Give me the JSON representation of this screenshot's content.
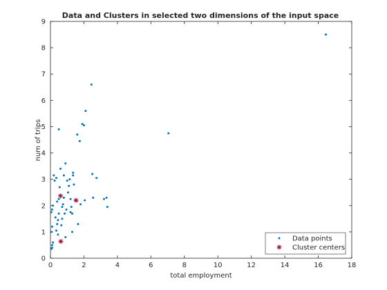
{
  "chart_data": {
    "type": "scatter",
    "title": "Data and Clusters in selected two dimensions of the input space",
    "xlabel": "total employment",
    "ylabel": "num of trips",
    "xlim": [
      0,
      18
    ],
    "ylim": [
      0,
      9
    ],
    "xticks": [
      "0",
      "2",
      "4",
      "6",
      "8",
      "10",
      "12",
      "14",
      "16",
      "18"
    ],
    "yticks": [
      "0",
      "1",
      "2",
      "3",
      "4",
      "5",
      "6",
      "7",
      "8",
      "9"
    ],
    "grid": false,
    "legend_position": "bottom-right",
    "series": [
      {
        "name": "Data points",
        "marker": "dot",
        "color": "#0072BD",
        "points": [
          [
            0.05,
            0.35
          ],
          [
            0.1,
            0.5
          ],
          [
            0.1,
            0.4
          ],
          [
            0.15,
            0.6
          ],
          [
            0.05,
            1.0
          ],
          [
            0.1,
            1.2
          ],
          [
            0.05,
            1.75
          ],
          [
            0.1,
            1.85
          ],
          [
            0.15,
            2.0
          ],
          [
            0.2,
            3.15
          ],
          [
            0.25,
            2.95
          ],
          [
            0.35,
            3.05
          ],
          [
            0.4,
            2.15
          ],
          [
            0.3,
            1.55
          ],
          [
            0.4,
            1.3
          ],
          [
            0.35,
            1.05
          ],
          [
            0.45,
            0.9
          ],
          [
            0.45,
            1.45
          ],
          [
            0.5,
            1.7
          ],
          [
            0.5,
            2.25
          ],
          [
            0.55,
            2.7
          ],
          [
            0.6,
            3.4
          ],
          [
            0.5,
            4.9
          ],
          [
            0.6,
            0.65
          ],
          [
            0.65,
            1.25
          ],
          [
            0.7,
            1.5
          ],
          [
            0.7,
            1.95
          ],
          [
            0.75,
            2.05
          ],
          [
            0.8,
            3.15
          ],
          [
            0.8,
            2.3
          ],
          [
            0.85,
            1.7
          ],
          [
            0.9,
            0.8
          ],
          [
            0.95,
            1.85
          ],
          [
            0.9,
            3.6
          ],
          [
            1.0,
            2.95
          ],
          [
            1.05,
            2.5
          ],
          [
            1.1,
            2.75
          ],
          [
            1.15,
            3.0
          ],
          [
            1.2,
            2.25
          ],
          [
            1.2,
            1.75
          ],
          [
            1.25,
            1.95
          ],
          [
            1.3,
            1.7
          ],
          [
            1.3,
            1.0
          ],
          [
            1.35,
            3.25
          ],
          [
            1.35,
            3.15
          ],
          [
            1.4,
            2.8
          ],
          [
            1.5,
            2.2
          ],
          [
            1.6,
            4.7
          ],
          [
            1.65,
            1.3
          ],
          [
            1.75,
            4.45
          ],
          [
            1.8,
            2.05
          ],
          [
            1.9,
            5.1
          ],
          [
            2.0,
            5.05
          ],
          [
            2.05,
            2.2
          ],
          [
            2.1,
            5.6
          ],
          [
            2.45,
            6.6
          ],
          [
            2.5,
            3.2
          ],
          [
            2.55,
            2.3
          ],
          [
            2.75,
            3.05
          ],
          [
            3.2,
            2.25
          ],
          [
            3.35,
            2.3
          ],
          [
            3.4,
            1.95
          ],
          [
            7.05,
            4.75
          ],
          [
            16.45,
            8.5
          ]
        ]
      },
      {
        "name": "Cluster centers",
        "marker": "asterisk",
        "color": "#A2142F",
        "points": [
          [
            0.6,
            2.37
          ],
          [
            1.53,
            2.2
          ],
          [
            0.62,
            0.64
          ]
        ]
      }
    ]
  }
}
